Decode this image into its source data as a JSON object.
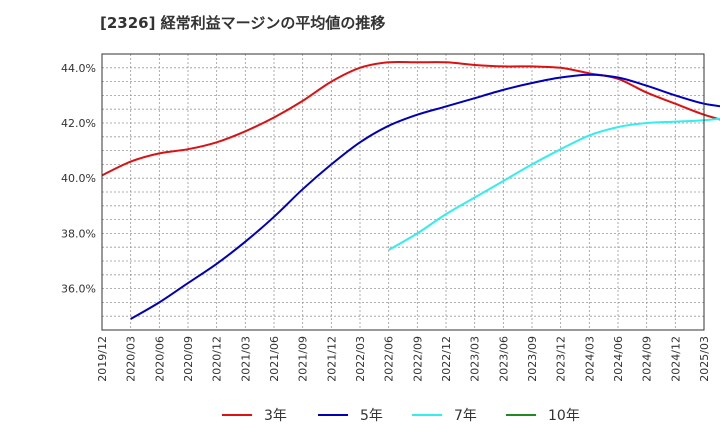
{
  "chart_data": {
    "type": "line",
    "title": "[2326]  経常利益マージンの平均値の推移",
    "xlabel": "",
    "ylabel": "",
    "x_ticks": [
      "2019/12",
      "2020/03",
      "2020/06",
      "2020/09",
      "2020/12",
      "2021/03",
      "2021/06",
      "2021/09",
      "2021/12",
      "2022/03",
      "2022/06",
      "2022/09",
      "2022/12",
      "2023/03",
      "2023/06",
      "2023/09",
      "2023/12",
      "2024/03",
      "2024/06",
      "2024/09",
      "2024/12",
      "2025/03"
    ],
    "y_ticks": [
      36.0,
      38.0,
      40.0,
      42.0,
      44.0
    ],
    "y_tick_labels": [
      "36.0%",
      "38.0%",
      "40.0%",
      "42.0%",
      "44.0%"
    ],
    "ylim": [
      34.5,
      44.5
    ],
    "grid": true,
    "legend_position": "bottom",
    "series": [
      {
        "name": "3年",
        "color": "#dd1111",
        "points": [
          [
            "2019/12",
            40.1
          ],
          [
            "2020/03",
            40.6
          ],
          [
            "2020/06",
            40.9
          ],
          [
            "2020/09",
            41.05
          ],
          [
            "2020/12",
            41.3
          ],
          [
            "2021/03",
            41.7
          ],
          [
            "2021/06",
            42.2
          ],
          [
            "2021/09",
            42.8
          ],
          [
            "2021/12",
            43.5
          ],
          [
            "2022/03",
            44.0
          ],
          [
            "2022/06",
            44.2
          ],
          [
            "2022/09",
            44.2
          ],
          [
            "2022/12",
            44.2
          ],
          [
            "2023/03",
            44.1
          ],
          [
            "2023/06",
            44.05
          ],
          [
            "2023/09",
            44.05
          ],
          [
            "2023/12",
            44.0
          ],
          [
            "2024/03",
            43.8
          ],
          [
            "2024/06",
            43.6
          ],
          [
            "2024/09",
            43.1
          ],
          [
            "2024/12",
            42.7
          ],
          [
            "2025/03",
            42.3
          ],
          [
            "2025/06",
            42.0
          ]
        ]
      },
      {
        "name": "5年",
        "color": "#0000bb",
        "points": [
          [
            "2020/03",
            34.9
          ],
          [
            "2020/06",
            35.5
          ],
          [
            "2020/09",
            36.2
          ],
          [
            "2020/12",
            36.9
          ],
          [
            "2021/03",
            37.7
          ],
          [
            "2021/06",
            38.6
          ],
          [
            "2021/09",
            39.6
          ],
          [
            "2021/12",
            40.5
          ],
          [
            "2022/03",
            41.3
          ],
          [
            "2022/06",
            41.9
          ],
          [
            "2022/09",
            42.3
          ],
          [
            "2022/12",
            42.6
          ],
          [
            "2023/03",
            42.9
          ],
          [
            "2023/06",
            43.2
          ],
          [
            "2023/09",
            43.45
          ],
          [
            "2023/12",
            43.65
          ],
          [
            "2024/03",
            43.75
          ],
          [
            "2024/06",
            43.65
          ],
          [
            "2024/09",
            43.35
          ],
          [
            "2024/12",
            43.0
          ],
          [
            "2025/03",
            42.7
          ],
          [
            "2025/06",
            42.55
          ]
        ]
      },
      {
        "name": "7年",
        "color": "#33eeee",
        "points": [
          [
            "2022/06",
            37.4
          ],
          [
            "2022/09",
            38.0
          ],
          [
            "2022/12",
            38.7
          ],
          [
            "2023/03",
            39.3
          ],
          [
            "2023/06",
            39.9
          ],
          [
            "2023/09",
            40.5
          ],
          [
            "2023/12",
            41.05
          ],
          [
            "2024/03",
            41.55
          ],
          [
            "2024/06",
            41.85
          ],
          [
            "2024/09",
            42.0
          ],
          [
            "2024/12",
            42.05
          ],
          [
            "2025/03",
            42.1
          ],
          [
            "2025/06",
            42.2
          ]
        ]
      },
      {
        "name": "10年",
        "color": "#228822",
        "points": []
      }
    ]
  }
}
